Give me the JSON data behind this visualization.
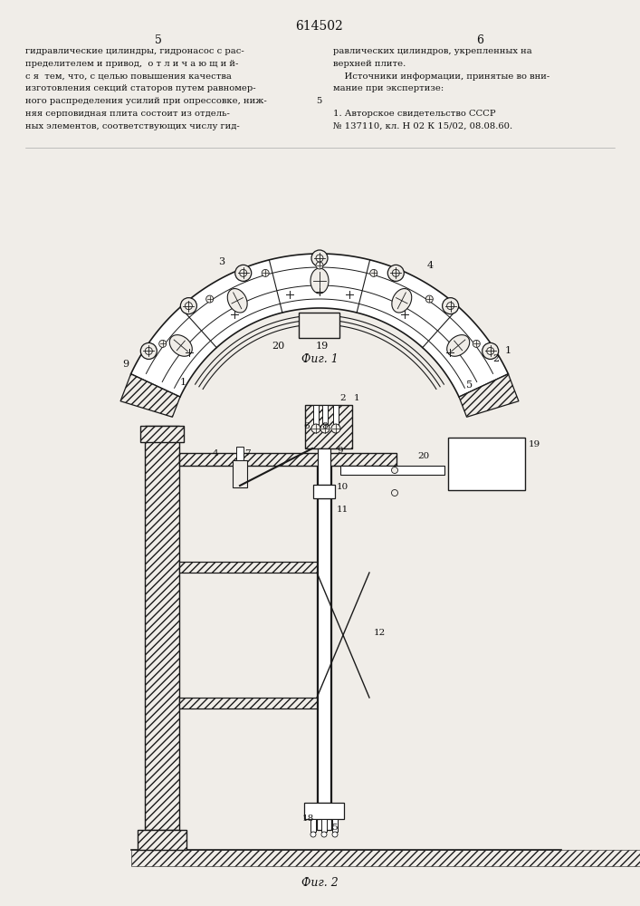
{
  "page_number": "614502",
  "col_left": "5",
  "col_right": "6",
  "text_left": [
    "гидравлические цилиндры, гидронасос с рас-",
    "пределителем и привод,  о т л и ч а ю щ и й-",
    "с я  тем, что, с целью повышения качества",
    "изготовления секций статоров путем равномер-",
    "ного распределения усилий при опрессовке, ниж-",
    "няя серповидная плита состоит из отдель-",
    "ных элементов, соответствующих числу гид-"
  ],
  "text_right": [
    "равлических цилиндров, укрепленных на",
    "верхней плите.",
    "    Источники информации, принятые во вни-",
    "мание при экспертизе:",
    "",
    "1. Авторское свидетельство СССР",
    "№ 137110, кл. Н 02 К 15/02, 08.08.60."
  ],
  "fig1_label": "Фиг. 1",
  "fig2_label": "Фиг. 2",
  "bg_color": "#f0ede8",
  "line_color": "#1a1a1a",
  "text_color": "#111111"
}
